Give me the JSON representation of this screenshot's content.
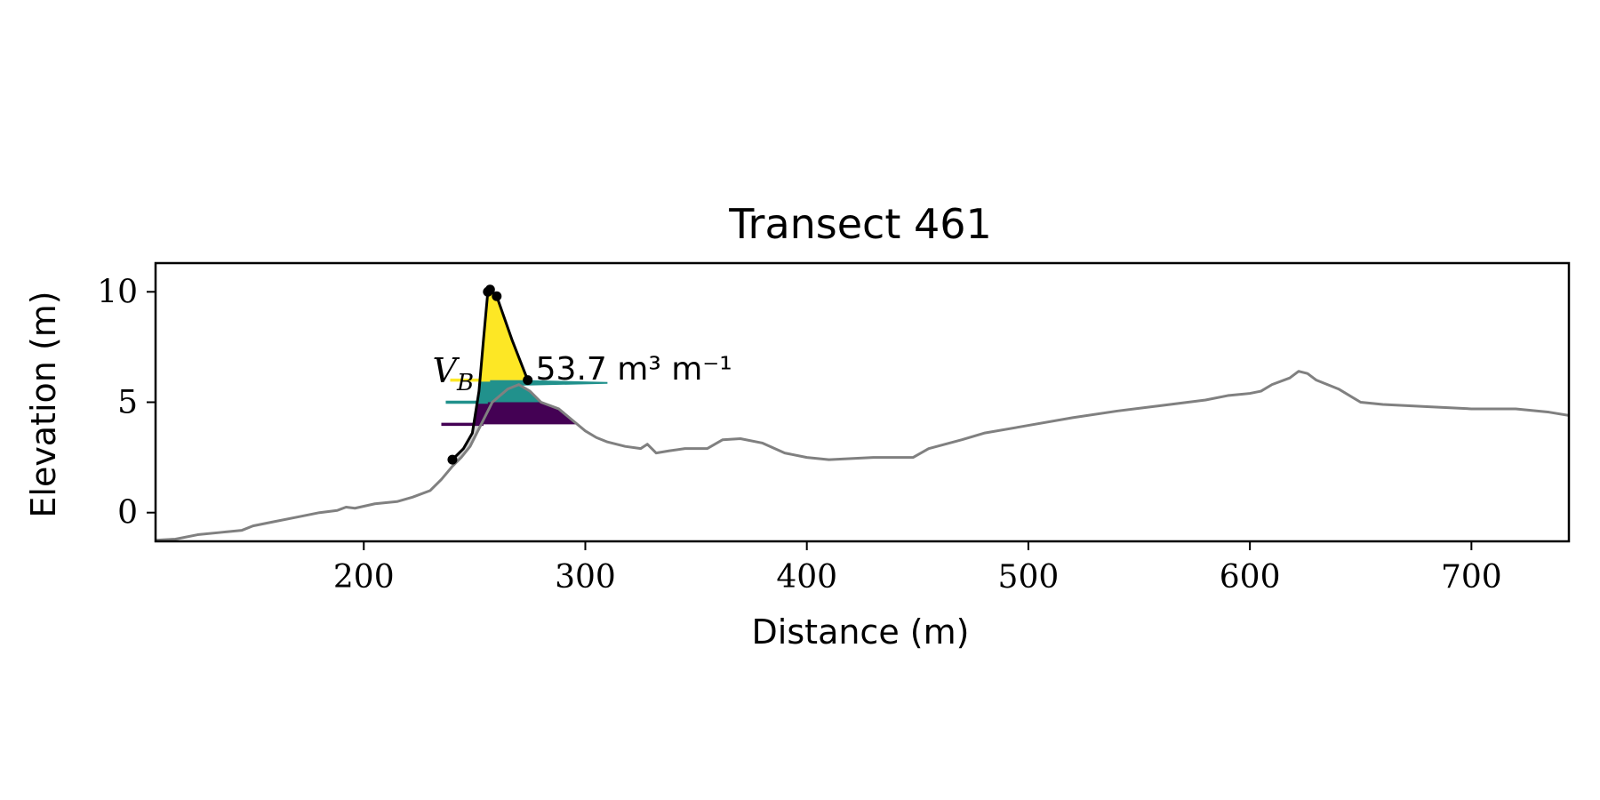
{
  "chart_data": {
    "type": "line",
    "title": "Transect 461",
    "xlabel": "Distance (m)",
    "ylabel": "Elevation (m)",
    "xlim": [
      106,
      744
    ],
    "ylim": [
      -1.3,
      11.3
    ],
    "xticks": [
      200,
      300,
      400,
      500,
      600,
      700
    ],
    "yticks": [
      0,
      5,
      10
    ],
    "grid": false,
    "profile": {
      "color": "#808080",
      "points": [
        [
          106,
          -1.25
        ],
        [
          115,
          -1.2
        ],
        [
          125,
          -1.0
        ],
        [
          135,
          -0.9
        ],
        [
          145,
          -0.8
        ],
        [
          150,
          -0.6
        ],
        [
          160,
          -0.4
        ],
        [
          170,
          -0.2
        ],
        [
          180,
          0.0
        ],
        [
          188,
          0.1
        ],
        [
          192,
          0.25
        ],
        [
          196,
          0.2
        ],
        [
          205,
          0.4
        ],
        [
          215,
          0.5
        ],
        [
          222,
          0.7
        ],
        [
          230,
          1.0
        ],
        [
          235,
          1.5
        ],
        [
          240,
          2.1
        ],
        [
          244,
          2.5
        ],
        [
          248,
          3.0
        ],
        [
          252,
          3.8
        ],
        [
          258,
          5.0
        ],
        [
          265,
          5.6
        ],
        [
          270,
          5.8
        ],
        [
          275,
          5.5
        ],
        [
          280,
          5.0
        ],
        [
          288,
          4.7
        ],
        [
          294,
          4.2
        ],
        [
          300,
          3.7
        ],
        [
          305,
          3.4
        ],
        [
          310,
          3.2
        ],
        [
          318,
          3.0
        ],
        [
          325,
          2.9
        ],
        [
          328,
          3.1
        ],
        [
          332,
          2.7
        ],
        [
          338,
          2.8
        ],
        [
          345,
          2.9
        ],
        [
          355,
          2.9
        ],
        [
          362,
          3.3
        ],
        [
          370,
          3.35
        ],
        [
          380,
          3.15
        ],
        [
          390,
          2.7
        ],
        [
          400,
          2.5
        ],
        [
          410,
          2.4
        ],
        [
          420,
          2.45
        ],
        [
          430,
          2.5
        ],
        [
          440,
          2.5
        ],
        [
          448,
          2.5
        ],
        [
          455,
          2.9
        ],
        [
          470,
          3.3
        ],
        [
          480,
          3.6
        ],
        [
          500,
          3.95
        ],
        [
          520,
          4.3
        ],
        [
          540,
          4.6
        ],
        [
          560,
          4.85
        ],
        [
          580,
          5.1
        ],
        [
          590,
          5.3
        ],
        [
          600,
          5.4
        ],
        [
          605,
          5.5
        ],
        [
          610,
          5.8
        ],
        [
          618,
          6.1
        ],
        [
          622,
          6.4
        ],
        [
          626,
          6.3
        ],
        [
          630,
          6.0
        ],
        [
          640,
          5.6
        ],
        [
          650,
          5.0
        ],
        [
          660,
          4.9
        ],
        [
          680,
          4.8
        ],
        [
          700,
          4.7
        ],
        [
          720,
          4.7
        ],
        [
          735,
          4.55
        ],
        [
          744,
          4.4
        ]
      ]
    },
    "dune_profile": {
      "color": "#000000",
      "points": [
        [
          240,
          2.4
        ],
        [
          245,
          2.9
        ],
        [
          249,
          3.6
        ],
        [
          252,
          5.5
        ],
        [
          254,
          7.8
        ],
        [
          256,
          10.0
        ],
        [
          257,
          10.1
        ],
        [
          260,
          9.8
        ],
        [
          267,
          7.8
        ],
        [
          274,
          6.0
        ]
      ],
      "markers": [
        [
          240,
          2.4
        ],
        [
          256,
          10.0
        ],
        [
          257,
          10.1
        ],
        [
          260,
          9.8
        ],
        [
          274,
          6.0
        ]
      ]
    },
    "volume_layers": [
      {
        "color": "#440154",
        "y_bottom": 4.0,
        "y_top": 5.0,
        "line_x": [
          235,
          254
        ]
      },
      {
        "color": "#21918c",
        "y_bottom": 5.0,
        "y_top": 6.0,
        "line_x": [
          237,
          256
        ]
      },
      {
        "color": "#fde725",
        "y_bottom": 6.0,
        "y_top": 10.1,
        "line_x": [
          239,
          257
        ]
      }
    ],
    "shade_color": "#c8c8c8",
    "annotation": {
      "text": "53.7 m³ m⁻¹",
      "x": 276,
      "y": 6.5
    },
    "layer_label": {
      "text": "V",
      "subscript": "B",
      "x": 231,
      "y": 6.3
    }
  }
}
